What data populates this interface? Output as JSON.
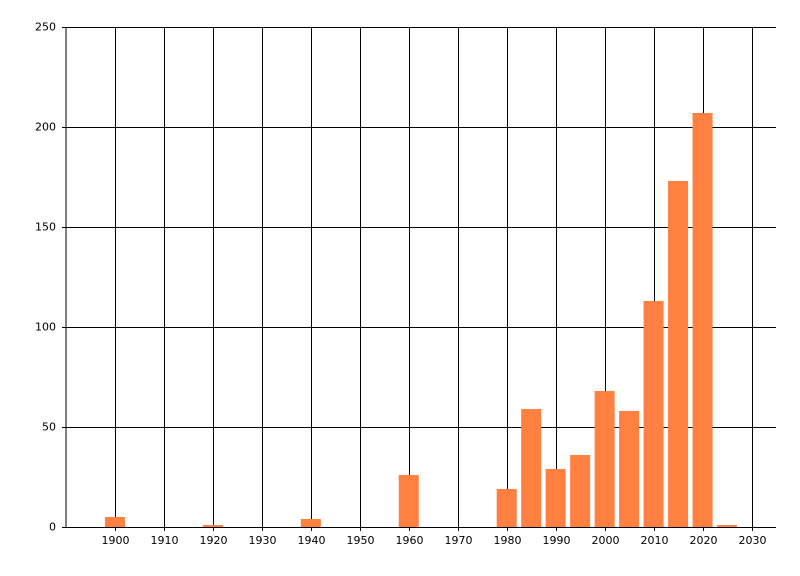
{
  "chart_data": {
    "type": "bar",
    "x": [
      1900,
      1920,
      1940,
      1960,
      1980,
      1985,
      1990,
      1995,
      2000,
      2005,
      2010,
      2015,
      2020,
      2025
    ],
    "values": [
      5,
      1,
      4,
      26,
      19,
      59,
      29,
      36,
      68,
      58,
      113,
      173,
      207,
      1
    ],
    "color": "#ff8040",
    "xlim": [
      1890,
      2035
    ],
    "xticks": [
      1900,
      1910,
      1920,
      1930,
      1940,
      1950,
      1960,
      1970,
      1980,
      1990,
      2000,
      2010,
      2020,
      2030
    ],
    "ylim": [
      0,
      250
    ],
    "yticks": [
      0,
      50,
      100,
      150,
      200,
      250
    ],
    "grid": true
  }
}
